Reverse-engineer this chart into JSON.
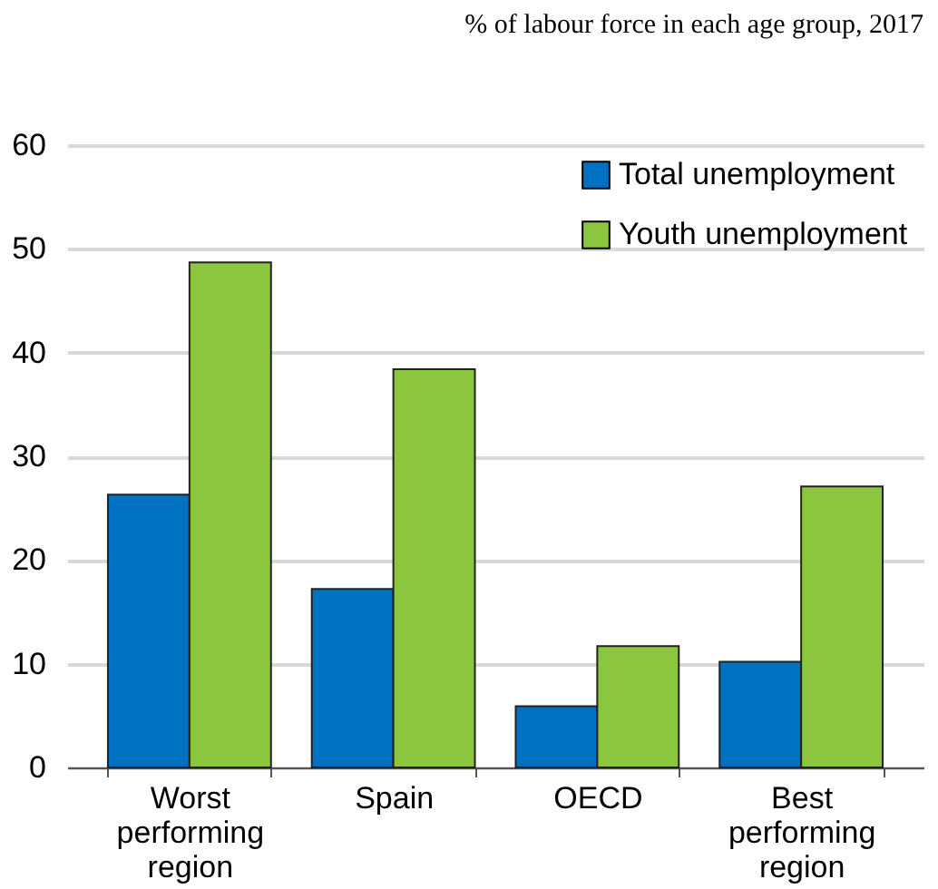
{
  "chart_data": {
    "type": "bar",
    "title": "% of labour force in each age group, 2017",
    "categories": [
      "Worst performing region",
      "Spain",
      "OECD",
      "Best performing region"
    ],
    "series": [
      {
        "name": "Total unemployment",
        "color": "#0070c0",
        "values": [
          26.3,
          17.2,
          5.9,
          10.2
        ]
      },
      {
        "name": "Youth unemployment",
        "color": "#8cc63f",
        "values": [
          48.7,
          38.4,
          11.7,
          27.1
        ]
      }
    ],
    "ylim": [
      0,
      60
    ],
    "yticks": [
      0,
      10,
      20,
      30,
      40,
      50,
      60
    ],
    "grid": "y",
    "legend": "top right"
  }
}
